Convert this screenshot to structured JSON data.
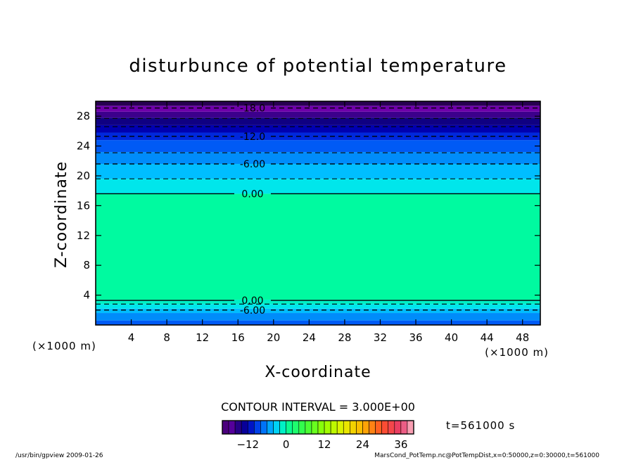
{
  "chart_data": {
    "type": "heatmap",
    "title": "disturbunce of potential temperature",
    "xlabel": "X-coordinate",
    "ylabel": "Z-coordinate",
    "x_unit_left": "(×1000 m)",
    "x_unit_right": "(×1000 m)",
    "xlim": [
      0,
      50
    ],
    "ylim": [
      0,
      30
    ],
    "xticks": [
      4,
      8,
      12,
      16,
      20,
      24,
      28,
      32,
      36,
      40,
      44,
      48
    ],
    "yticks": [
      4,
      8,
      12,
      16,
      20,
      24,
      28
    ],
    "color_bands": [
      {
        "z0": 0.0,
        "z1": 0.6,
        "value": -8
      },
      {
        "z0": 0.6,
        "z1": 1.6,
        "value": -6
      },
      {
        "z0": 1.6,
        "z1": 2.2,
        "value": -4
      },
      {
        "z0": 2.2,
        "z1": 2.8,
        "value": -2
      },
      {
        "z0": 2.8,
        "z1": 3.4,
        "value": -1
      },
      {
        "z0": 3.4,
        "z1": 17.6,
        "value": 0
      },
      {
        "z0": 17.6,
        "z1": 19.6,
        "value": -2
      },
      {
        "z0": 19.6,
        "z1": 21.6,
        "value": -4
      },
      {
        "z0": 21.6,
        "z1": 23.2,
        "value": -6
      },
      {
        "z0": 23.2,
        "z1": 24.8,
        "value": -8
      },
      {
        "z0": 24.8,
        "z1": 25.8,
        "value": -10
      },
      {
        "z0": 25.8,
        "z1": 26.8,
        "value": -12
      },
      {
        "z0": 26.8,
        "z1": 27.8,
        "value": -14
      },
      {
        "z0": 27.8,
        "z1": 28.6,
        "value": -16
      },
      {
        "z0": 28.6,
        "z1": 29.4,
        "value": -18
      },
      {
        "z0": 29.4,
        "z1": 30.0,
        "value": -20
      }
    ],
    "contours": [
      {
        "z": 29.1,
        "value": -18,
        "label": "-18.0",
        "style": "dashed",
        "labeled": true
      },
      {
        "z": 27.7,
        "value": -15,
        "label": "",
        "style": "dashed",
        "labeled": false
      },
      {
        "z": 26.6,
        "value": -15,
        "label": "",
        "style": "dashed",
        "labeled": false
      },
      {
        "z": 25.3,
        "value": -12,
        "label": "-12.0",
        "style": "dashed",
        "labeled": true
      },
      {
        "z": 23.1,
        "value": -9,
        "label": "",
        "style": "dashed",
        "labeled": false
      },
      {
        "z": 21.6,
        "value": -6,
        "label": "-6.00",
        "style": "dashed",
        "labeled": true
      },
      {
        "z": 19.6,
        "value": -3,
        "label": "",
        "style": "dashed",
        "labeled": false
      },
      {
        "z": 17.6,
        "value": 0,
        "label": "0.00",
        "style": "solid",
        "labeled": true
      },
      {
        "z": 3.3,
        "value": 0,
        "label": "0.00",
        "style": "solid",
        "labeled": true
      },
      {
        "z": 2.8,
        "value": -3,
        "label": "",
        "style": "dashed",
        "labeled": false
      },
      {
        "z": 2.0,
        "value": -6,
        "label": "-6.00",
        "style": "dashed",
        "labeled": true
      }
    ],
    "contour_interval_label": "CONTOUR INTERVAL = 3.000E+00",
    "time_label": "t=561000 s",
    "colorbar": {
      "range": [
        -20,
        40
      ],
      "ticks": [
        -12,
        0,
        12,
        24,
        36
      ],
      "tick_labels": [
        "−12",
        "0",
        "12",
        "24",
        "36"
      ]
    },
    "colors": {
      "background": "#ffffff",
      "axes": "#000000"
    }
  },
  "footer": {
    "left": "/usr/bin/gpview   2009-01-26",
    "right": "MarsCond_PotTemp.nc@PotTempDist,x=0:50000,z=0:30000,t=561000"
  }
}
